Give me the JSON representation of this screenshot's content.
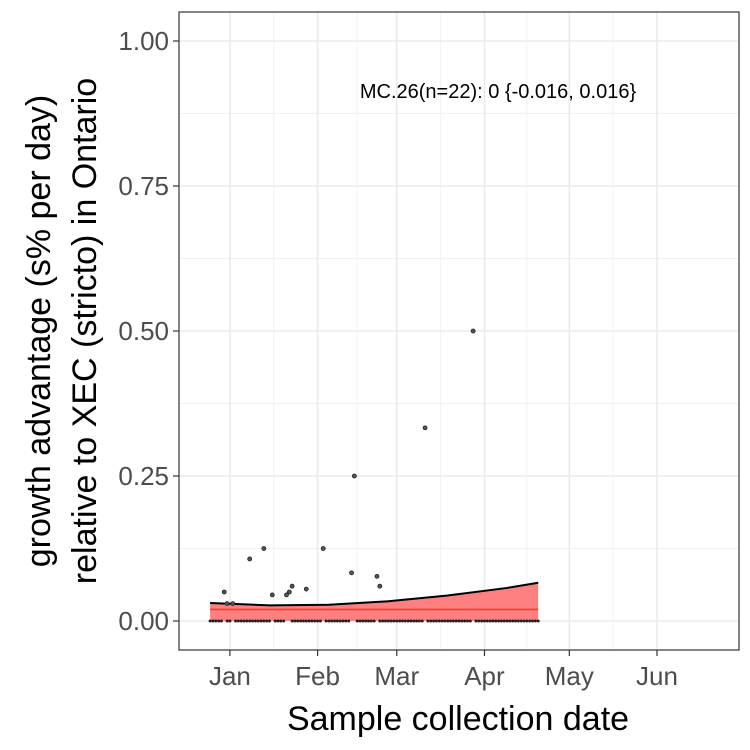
{
  "chart_data": {
    "type": "line",
    "xlabel": "Sample collection date",
    "ylabel_lines": [
      "growth advantage (s% per day)",
      "relative to XEC (stricto) in Ontario"
    ],
    "annotation": "MC.26(n=22): 0 {-0.016, 0.016}",
    "xlim": [
      "2024-12-14",
      "2025-06-30"
    ],
    "ylim": [
      -0.05,
      1.05
    ],
    "x_ticks": [
      {
        "date": "2025-01-01",
        "label": "Jan"
      },
      {
        "date": "2025-02-01",
        "label": "Feb"
      },
      {
        "date": "2025-03-01",
        "label": "Mar"
      },
      {
        "date": "2025-04-01",
        "label": "Apr"
      },
      {
        "date": "2025-05-01",
        "label": "May"
      },
      {
        "date": "2025-06-01",
        "label": "Jun"
      }
    ],
    "y_ticks": [
      {
        "value": 0.0,
        "label": "0.00"
      },
      {
        "value": 0.25,
        "label": "0.25"
      },
      {
        "value": 0.5,
        "label": "0.50"
      },
      {
        "value": 0.75,
        "label": "0.75"
      },
      {
        "value": 1.0,
        "label": "1.00"
      }
    ],
    "grid": true,
    "fit_start": "2024-12-25",
    "fit_end": "2025-04-20",
    "fit_line": {
      "color": "#e8413c",
      "start": 0.02,
      "end": 0.02
    },
    "ci_band": {
      "color": "#ff8080",
      "x": [
        "2024-12-25",
        "2025-01-15",
        "2025-02-05",
        "2025-02-26",
        "2025-03-19",
        "2025-04-09",
        "2025-04-20"
      ],
      "upper": [
        0.031,
        0.027,
        0.028,
        0.034,
        0.044,
        0.057,
        0.066
      ],
      "lower": [
        0.0,
        0.0,
        0.0,
        0.0,
        0.0,
        0.0,
        0.0
      ]
    },
    "points": [
      {
        "x": "2024-12-30",
        "y": 0.05
      },
      {
        "x": "2024-12-31",
        "y": 0.03
      },
      {
        "x": "2025-01-02",
        "y": 0.03
      },
      {
        "x": "2025-01-08",
        "y": 0.107
      },
      {
        "x": "2025-01-13",
        "y": 0.125
      },
      {
        "x": "2025-01-16",
        "y": 0.045
      },
      {
        "x": "2025-01-21",
        "y": 0.045
      },
      {
        "x": "2025-01-22",
        "y": 0.05
      },
      {
        "x": "2025-01-23",
        "y": 0.06
      },
      {
        "x": "2025-01-28",
        "y": 0.055
      },
      {
        "x": "2025-02-03",
        "y": 0.125
      },
      {
        "x": "2025-02-13",
        "y": 0.083
      },
      {
        "x": "2025-02-14",
        "y": 0.25
      },
      {
        "x": "2025-02-22",
        "y": 0.077
      },
      {
        "x": "2025-02-23",
        "y": 0.06
      },
      {
        "x": "2025-03-11",
        "y": 0.333
      },
      {
        "x": "2025-03-28",
        "y": 0.5
      }
    ],
    "zero_points_start": "2024-12-25",
    "zero_points_end": "2025-04-20",
    "zero_points_missing": [
      "2024-12-30",
      "2025-01-02",
      "2025-01-16",
      "2025-01-21",
      "2025-01-22",
      "2025-02-03",
      "2025-02-13",
      "2025-02-14",
      "2025-02-22",
      "2025-03-11",
      "2025-03-28"
    ]
  }
}
